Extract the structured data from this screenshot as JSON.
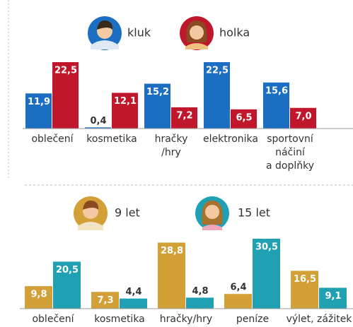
{
  "chart_data": [
    {
      "type": "bar",
      "categories": [
        "oblečení",
        "kosmetika",
        "hračky\n/hry",
        "elektronika",
        "sportovní\nnáčiní\na doplňky"
      ],
      "series": [
        {
          "name": "kluk",
          "color": "#1b6ec2",
          "values": [
            11.9,
            0.4,
            15.2,
            22.5,
            15.6
          ],
          "value_labels": [
            "11,9",
            "0,4",
            "15,2",
            "22,5",
            "15,6"
          ]
        },
        {
          "name": "holka",
          "color": "#c1172c",
          "values": [
            22.5,
            12.1,
            7.2,
            6.5,
            7.0
          ],
          "value_labels": [
            "22,5",
            "12,1",
            "7,2",
            "6,5",
            "7,0"
          ]
        }
      ]
    },
    {
      "type": "bar",
      "categories": [
        "oblečení",
        "kosmetika",
        "hračky/hry",
        "peníze",
        "výlet, zážitek"
      ],
      "series": [
        {
          "name": "9 let",
          "color": "#d3a038",
          "values": [
            9.8,
            7.3,
            28.8,
            6.4,
            16.5
          ],
          "value_labels": [
            "9,8",
            "7,3",
            "28,8",
            "6,4",
            "16,5"
          ]
        },
        {
          "name": "15 let",
          "color": "#1fa0b3",
          "values": [
            20.5,
            4.4,
            4.8,
            30.5,
            9.1
          ],
          "value_labels": [
            "20,5",
            "4,4",
            "4,8",
            "30,5",
            "9,1"
          ]
        }
      ]
    }
  ]
}
